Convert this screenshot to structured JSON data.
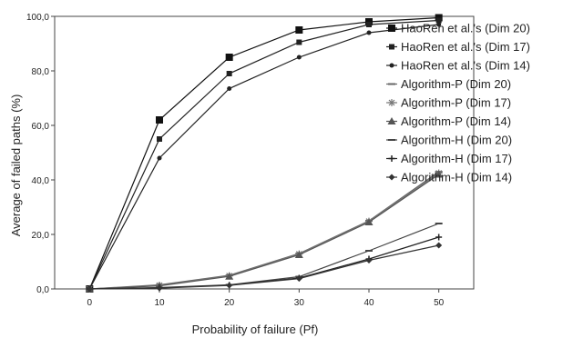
{
  "chart_data": {
    "type": "line",
    "title": "",
    "xlabel": "Probability of failure (Pf)",
    "ylabel": "Average of failed paths (%)",
    "x": [
      0,
      10,
      20,
      30,
      40,
      50
    ],
    "x_ticks": [
      "0",
      "10",
      "20",
      "30",
      "40",
      "50"
    ],
    "y_ticks": [
      "0,0",
      "20,0",
      "40,0",
      "60,0",
      "80,0",
      "100,0"
    ],
    "xlim": [
      -5,
      55
    ],
    "ylim": [
      0,
      100
    ],
    "grid": false,
    "legend_position": "right",
    "series": [
      {
        "name": "HaoRen et al.'s (Dim 20)",
        "marker": "square",
        "values": [
          0,
          62,
          85,
          95,
          98,
          99.5
        ]
      },
      {
        "name": "HaoRen et al.'s (Dim 17)",
        "marker": "small-square",
        "values": [
          0,
          55,
          79,
          90.5,
          97,
          98.5
        ]
      },
      {
        "name": "HaoRen et al.'s (Dim 14)",
        "marker": "dot",
        "values": [
          0,
          48,
          73.5,
          85,
          94,
          97
        ]
      },
      {
        "name": "Algorithm-P (Dim 20)",
        "marker": "dash",
        "values": [
          0,
          1.5,
          5,
          13,
          25,
          43
        ]
      },
      {
        "name": "Algorithm-P (Dim 17)",
        "marker": "star",
        "values": [
          0,
          1.3,
          4.8,
          12.8,
          24.8,
          42.5
        ]
      },
      {
        "name": "Algorithm-P (Dim 14)",
        "marker": "triangle",
        "values": [
          0,
          1.1,
          4.6,
          12.5,
          24.5,
          42
        ]
      },
      {
        "name": "Algorithm-H (Dim 20)",
        "marker": "dash",
        "values": [
          0,
          0.5,
          1.5,
          4.5,
          14,
          24
        ]
      },
      {
        "name": "Algorithm-H (Dim 17)",
        "marker": "plus",
        "values": [
          0,
          0.4,
          1.4,
          4,
          11,
          19
        ]
      },
      {
        "name": "Algorithm-H (Dim 14)",
        "marker": "diamond",
        "values": [
          0,
          0.3,
          1.3,
          3.8,
          10.5,
          16
        ]
      }
    ]
  }
}
